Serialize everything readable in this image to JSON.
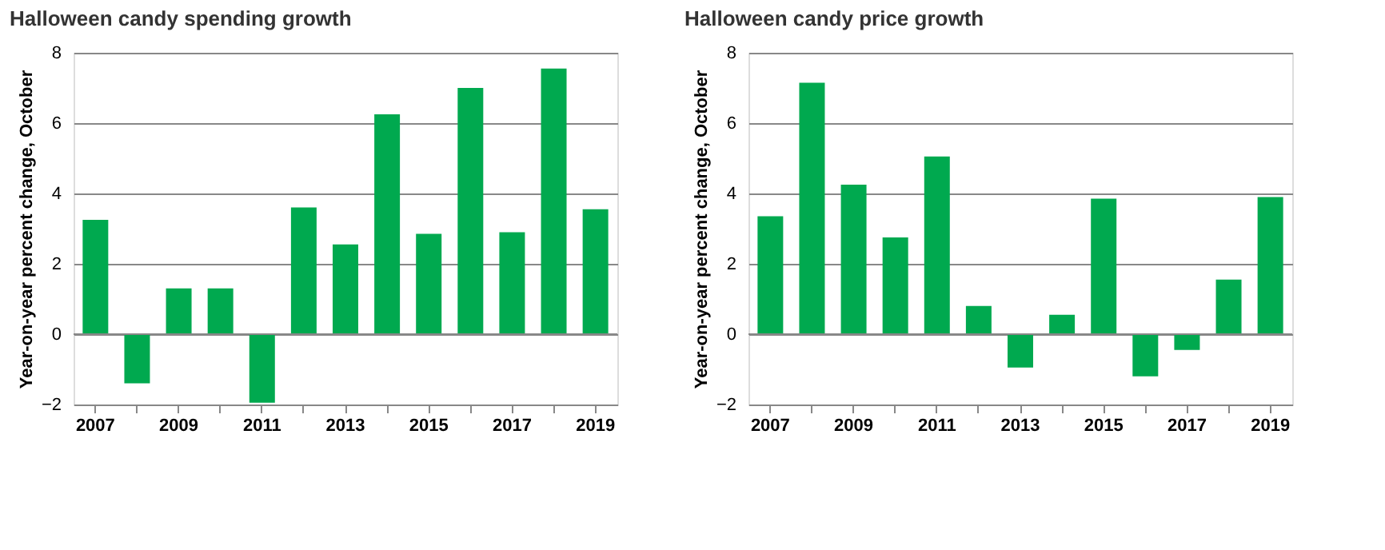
{
  "chart_data": [
    {
      "type": "bar",
      "title": "Halloween candy spending growth",
      "ylabel": "Year-on-year percent change, October",
      "categories": [
        "2007",
        null,
        "2009",
        null,
        "2011",
        null,
        "2013",
        null,
        "2015",
        null,
        "2017",
        null,
        "2019"
      ],
      "values": [
        3.25,
        -1.4,
        1.3,
        1.3,
        -1.95,
        3.6,
        2.55,
        6.25,
        2.85,
        7.0,
        2.9,
        7.55,
        3.55
      ],
      "color": "#00a94f",
      "ylim": [
        -2,
        8
      ],
      "yticks": [
        -2,
        0,
        2,
        4,
        6,
        8
      ],
      "grid": "y"
    },
    {
      "type": "bar",
      "title": "Halloween candy price growth",
      "ylabel": "Year-on-year percent change, October",
      "categories": [
        "2007",
        null,
        "2009",
        null,
        "2011",
        null,
        "2013",
        null,
        "2015",
        null,
        "2017",
        null,
        "2019"
      ],
      "values": [
        3.35,
        7.15,
        4.25,
        2.75,
        5.05,
        0.8,
        -0.95,
        0.55,
        3.85,
        -1.2,
        -0.45,
        1.55,
        3.9
      ],
      "color": "#00a94f",
      "ylim": [
        -2,
        8
      ],
      "yticks": [
        -2,
        0,
        2,
        4,
        6,
        8
      ],
      "grid": "y"
    }
  ]
}
